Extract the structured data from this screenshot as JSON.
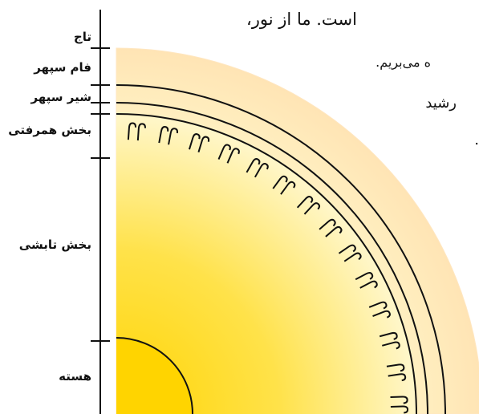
{
  "labels": {
    "corona": "تاج",
    "photosphere": "فام سپهر",
    "chromosphere": "شیر سپهر",
    "convection_zone": "بخش همرفتی",
    "radiative_zone": "بخش تابشی",
    "core": "هسته"
  },
  "text_lines": [
    "است. ما از نور،",
    "ه می‌بریم.",
    "رشید",
    "."
  ],
  "colors": {
    "outer_glow_inner": "#fff3c4",
    "outer_glow_outer": "#ffe0b0",
    "body_center": "#ffd400",
    "body_edge": "#fff6c8",
    "stroke": "#111111"
  }
}
